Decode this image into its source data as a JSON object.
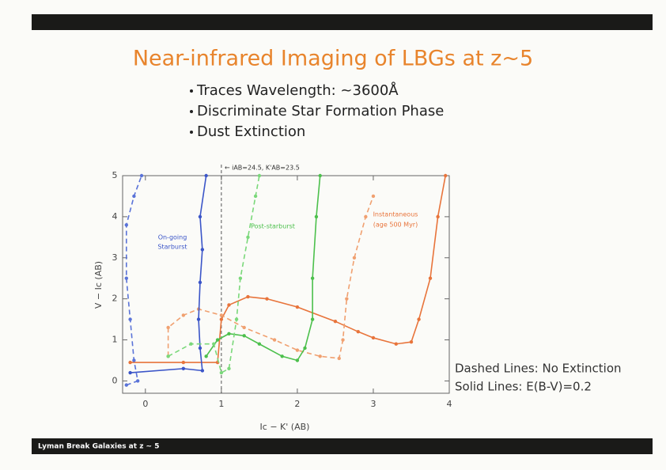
{
  "slide": {
    "title": "Near-infrared Imaging of LBGs at z~5",
    "bullets": [
      "Traces Wavelength: ~3600Å",
      "Discriminate Star Formation Phase",
      "Dust Extinction"
    ],
    "footer": "Lyman Break Galaxies at z ~ 5",
    "notes": [
      "Dashed Lines: No Extinction",
      "Solid Lines: E(B-V)=0.2"
    ]
  },
  "chart_data": {
    "type": "line",
    "xlabel": "Ic − K' (AB)",
    "ylabel": "V − Ic (AB)",
    "xlim": [
      -0.3,
      4
    ],
    "ylim": [
      -0.3,
      5
    ],
    "xticks": [
      0,
      1,
      2,
      3,
      4
    ],
    "yticks": [
      0,
      1,
      2,
      3,
      4,
      5
    ],
    "ref_line": {
      "x": 1,
      "label": "← iAB=24.5, K'AB=23.5"
    },
    "annotations": [
      "On-going",
      "Starburst",
      "Post-starburst",
      "Instantaneous",
      "(age 500 Myr)"
    ],
    "series": [
      {
        "color": "#e8743b",
        "dash": false,
        "x": [
          -0.2,
          0.5,
          0.95,
          1.0,
          1.1,
          1.35,
          1.6,
          2.0,
          2.5,
          2.8,
          3.0,
          3.3,
          3.5,
          3.6,
          3.75,
          3.85,
          3.95
        ],
        "values": [
          0.45,
          0.45,
          0.45,
          1.5,
          1.85,
          2.05,
          2.0,
          1.8,
          1.45,
          1.2,
          1.05,
          0.9,
          0.95,
          1.5,
          2.5,
          4.0,
          5.0
        ]
      },
      {
        "color": "#f0a070",
        "dash": true,
        "x": [
          0.3,
          0.3,
          0.5,
          0.7,
          1.0,
          1.3,
          1.7,
          2.0,
          2.3,
          2.55,
          2.6,
          2.65,
          2.75,
          2.9,
          3.0
        ],
        "values": [
          0.6,
          1.3,
          1.6,
          1.75,
          1.6,
          1.3,
          1.0,
          0.75,
          0.6,
          0.55,
          1.0,
          2.0,
          3.0,
          4.0,
          4.5
        ]
      },
      {
        "color": "#3b55c8",
        "dash": false,
        "x": [
          -0.2,
          0.5,
          0.75,
          0.72,
          0.7,
          0.72,
          0.75,
          0.72,
          0.8
        ],
        "values": [
          0.2,
          0.3,
          0.25,
          0.8,
          1.5,
          2.4,
          3.2,
          4.0,
          5.0
        ]
      },
      {
        "color": "#5a73d8",
        "dash": true,
        "x": [
          -0.25,
          -0.1,
          -0.15,
          -0.2,
          -0.25,
          -0.25,
          -0.15,
          -0.05
        ],
        "values": [
          -0.1,
          0,
          0.5,
          1.5,
          2.5,
          3.8,
          4.5,
          5.0
        ]
      },
      {
        "color": "#4cc04c",
        "dash": false,
        "x": [
          0.8,
          0.95,
          1.1,
          1.3,
          1.5,
          1.8,
          2.0,
          2.1,
          2.2,
          2.2,
          2.25,
          2.3
        ],
        "values": [
          0.6,
          1.0,
          1.15,
          1.1,
          0.9,
          0.6,
          0.5,
          0.8,
          1.5,
          2.5,
          4.0,
          5.0
        ]
      },
      {
        "color": "#7ad87a",
        "dash": true,
        "x": [
          0.3,
          0.6,
          0.9,
          1.0,
          1.1,
          1.2,
          1.25,
          1.35,
          1.45,
          1.5
        ],
        "values": [
          0.6,
          0.9,
          0.9,
          0.2,
          0.3,
          1.5,
          2.5,
          3.5,
          4.5,
          5.0
        ]
      }
    ]
  }
}
